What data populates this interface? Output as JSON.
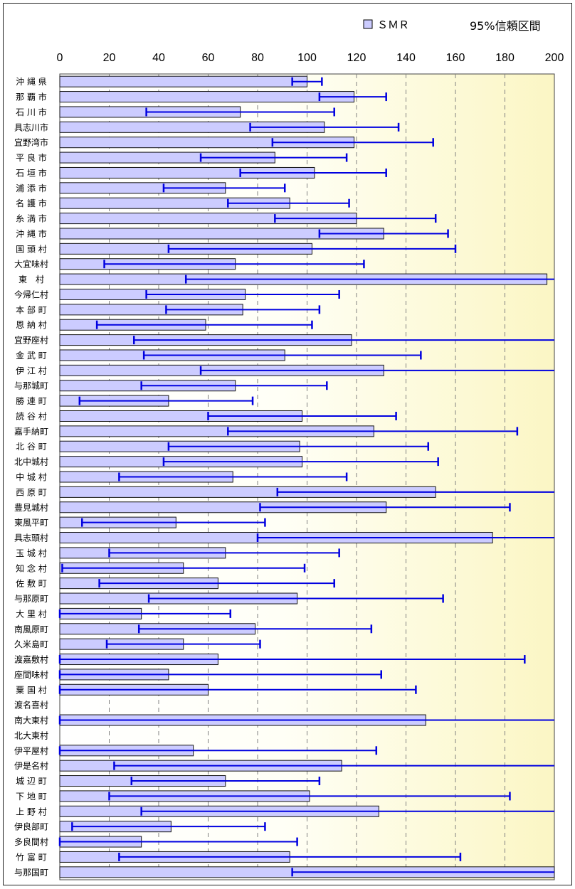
{
  "chart_data": {
    "type": "bar",
    "orientation": "horizontal",
    "legend": {
      "series_label": "ＳＭＲ",
      "ci_label": "95%信頼区間",
      "placement": "top-right"
    },
    "xlim": [
      0,
      200
    ],
    "xticks": [
      "0",
      "20",
      "40",
      "60",
      "80",
      "100",
      "120",
      "140",
      "160",
      "180",
      "200"
    ],
    "grid": "vertical dashed",
    "categories": [
      "沖 縄 県",
      "那 覇 市",
      "石 川 市",
      "具志川市",
      "宜野湾市",
      "平 良 市",
      "石 垣 市",
      "浦 添 市",
      "名 護 市",
      "糸 満 市",
      "沖 縄 市",
      "国 頭 村",
      "大宜味村",
      "東　村",
      "今帰仁村",
      "本 部 町",
      "恩 納 村",
      "宜野座村",
      "金 武 町",
      "伊 江 村",
      "与那城町",
      "勝 連 町",
      "読 谷 村",
      "嘉手納町",
      "北 谷 町",
      "北中城村",
      "中 城 村",
      "西 原 町",
      "豊見城村",
      "東風平町",
      "具志頭村",
      "玉 城 村",
      "知 念 村",
      "佐 敷 町",
      "与那原町",
      "大 里 村",
      "南風原町",
      "久米島町",
      "渡嘉敷村",
      "座間味村",
      "粟 国 村",
      "渡名喜村",
      "南大東村",
      "北大東村",
      "伊平屋村",
      "伊是名村",
      "城 辺 町",
      "下 地 町",
      "上 野 村",
      "伊良部町",
      "多良間村",
      "竹 富 町",
      "与那国町"
    ],
    "values": [
      100,
      119,
      73,
      107,
      119,
      87,
      103,
      67,
      93,
      120,
      131,
      102,
      71,
      197,
      75,
      74,
      59,
      118,
      91,
      131,
      71,
      44,
      98,
      127,
      97,
      98,
      70,
      152,
      132,
      47,
      175,
      67,
      50,
      64,
      96,
      33,
      79,
      50,
      64,
      44,
      60,
      0,
      148,
      0,
      54,
      114,
      67,
      101,
      129,
      45,
      33,
      93,
      200
    ],
    "ci_low": [
      94,
      105,
      35,
      77,
      86,
      57,
      73,
      42,
      68,
      87,
      105,
      44,
      18,
      51,
      35,
      43,
      15,
      30,
      34,
      57,
      33,
      8,
      60,
      68,
      44,
      42,
      24,
      88,
      81,
      9,
      80,
      20,
      1,
      16,
      36,
      0,
      32,
      19,
      0,
      0,
      0,
      0,
      0,
      0,
      0,
      22,
      29,
      20,
      33,
      5,
      0,
      24,
      94
    ],
    "ci_high": [
      106,
      132,
      111,
      137,
      151,
      116,
      132,
      91,
      117,
      152,
      157,
      160,
      123,
      200,
      113,
      105,
      102,
      200,
      146,
      200,
      108,
      78,
      136,
      185,
      149,
      153,
      116,
      200,
      182,
      83,
      200,
      113,
      99,
      111,
      155,
      69,
      126,
      81,
      188,
      130,
      144,
      0,
      200,
      0,
      128,
      200,
      105,
      182,
      200,
      83,
      96,
      162,
      200
    ]
  }
}
